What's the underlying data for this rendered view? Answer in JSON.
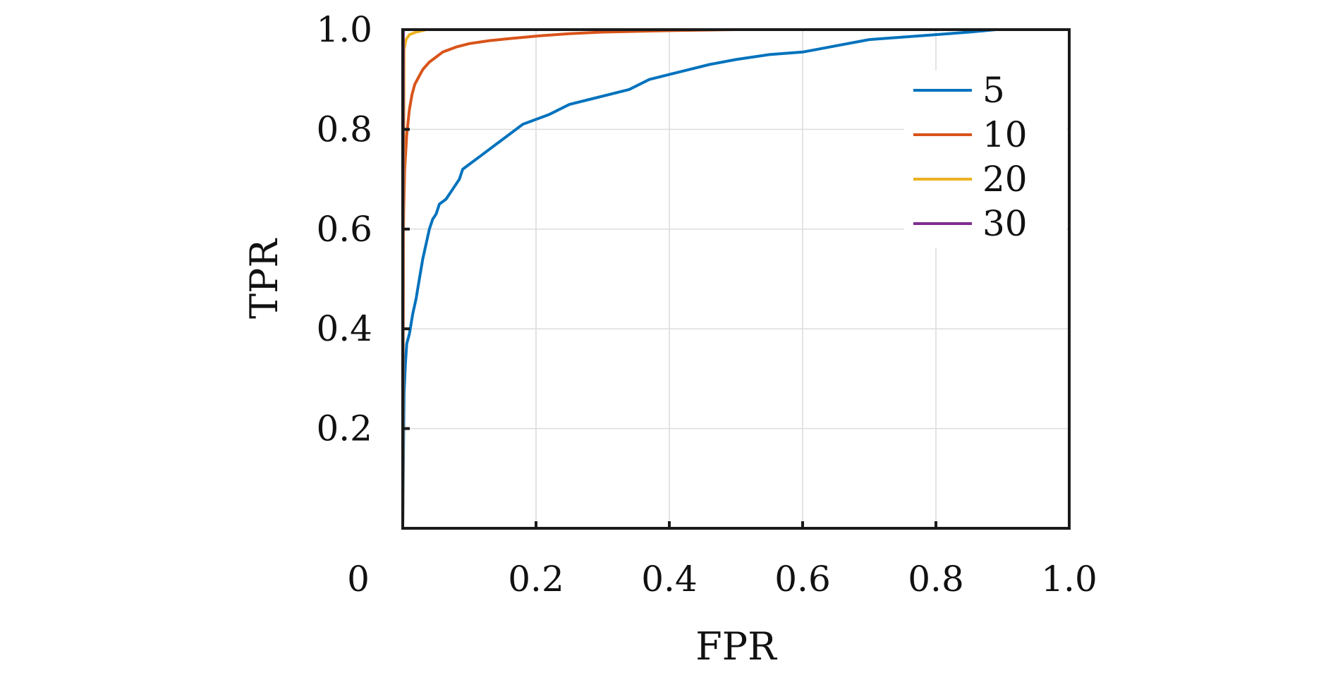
{
  "chart_data": {
    "type": "line",
    "title": "",
    "xlabel": "FPR",
    "ylabel": "TPR",
    "xlim": [
      0,
      1
    ],
    "ylim": [
      0,
      1
    ],
    "x_ticks": [
      0,
      0.2,
      0.4,
      0.6,
      0.8,
      1.0
    ],
    "x_tick_labels": [
      "0",
      "0.2",
      "0.4",
      "0.6",
      "0.8",
      "1.0"
    ],
    "y_ticks": [
      0.2,
      0.4,
      0.6,
      0.8,
      1.0
    ],
    "y_tick_labels": [
      "0.2",
      "0.4",
      "0.6",
      "0.8",
      "1.0"
    ],
    "grid": true,
    "legend_position": "upper-right",
    "series": [
      {
        "name": "5",
        "color": "#0072BD",
        "points": [
          [
            0,
            0
          ],
          [
            0.002,
            0.27
          ],
          [
            0.004,
            0.33
          ],
          [
            0.006,
            0.37
          ],
          [
            0.01,
            0.39
          ],
          [
            0.015,
            0.43
          ],
          [
            0.02,
            0.46
          ],
          [
            0.025,
            0.5
          ],
          [
            0.03,
            0.54
          ],
          [
            0.035,
            0.57
          ],
          [
            0.04,
            0.6
          ],
          [
            0.045,
            0.62
          ],
          [
            0.05,
            0.63
          ],
          [
            0.055,
            0.65
          ],
          [
            0.065,
            0.66
          ],
          [
            0.075,
            0.68
          ],
          [
            0.085,
            0.7
          ],
          [
            0.09,
            0.72
          ],
          [
            0.1,
            0.73
          ],
          [
            0.12,
            0.75
          ],
          [
            0.14,
            0.77
          ],
          [
            0.16,
            0.79
          ],
          [
            0.18,
            0.81
          ],
          [
            0.2,
            0.82
          ],
          [
            0.22,
            0.83
          ],
          [
            0.25,
            0.85
          ],
          [
            0.28,
            0.86
          ],
          [
            0.31,
            0.87
          ],
          [
            0.34,
            0.88
          ],
          [
            0.37,
            0.9
          ],
          [
            0.4,
            0.91
          ],
          [
            0.43,
            0.92
          ],
          [
            0.46,
            0.93
          ],
          [
            0.5,
            0.94
          ],
          [
            0.55,
            0.95
          ],
          [
            0.6,
            0.955
          ],
          [
            0.62,
            0.96
          ],
          [
            0.66,
            0.97
          ],
          [
            0.7,
            0.98
          ],
          [
            0.75,
            0.985
          ],
          [
            0.8,
            0.99
          ],
          [
            0.85,
            0.995
          ],
          [
            0.89,
            1.0
          ],
          [
            1.0,
            1.0
          ]
        ]
      },
      {
        "name": "10",
        "color": "#D95319",
        "points": [
          [
            0,
            0
          ],
          [
            0.001,
            0.6
          ],
          [
            0.003,
            0.72
          ],
          [
            0.006,
            0.79
          ],
          [
            0.01,
            0.84
          ],
          [
            0.014,
            0.87
          ],
          [
            0.018,
            0.89
          ],
          [
            0.022,
            0.9
          ],
          [
            0.03,
            0.92
          ],
          [
            0.04,
            0.935
          ],
          [
            0.05,
            0.945
          ],
          [
            0.06,
            0.955
          ],
          [
            0.08,
            0.965
          ],
          [
            0.1,
            0.972
          ],
          [
            0.13,
            0.978
          ],
          [
            0.16,
            0.982
          ],
          [
            0.2,
            0.987
          ],
          [
            0.25,
            0.992
          ],
          [
            0.3,
            0.995
          ],
          [
            0.4,
            0.998
          ],
          [
            0.5,
            1.0
          ],
          [
            1.0,
            1.0
          ]
        ]
      },
      {
        "name": "20",
        "color": "#EDB120",
        "points": [
          [
            0,
            0
          ],
          [
            0.002,
            0.96
          ],
          [
            0.005,
            0.98
          ],
          [
            0.01,
            0.99
          ],
          [
            0.02,
            0.995
          ],
          [
            0.035,
            1.0
          ],
          [
            1.0,
            1.0
          ]
        ]
      },
      {
        "name": "30",
        "color": "#7E2F8E",
        "points": [
          [
            0,
            0
          ],
          [
            0.001,
            1.0
          ],
          [
            1.0,
            1.0
          ]
        ]
      }
    ]
  }
}
